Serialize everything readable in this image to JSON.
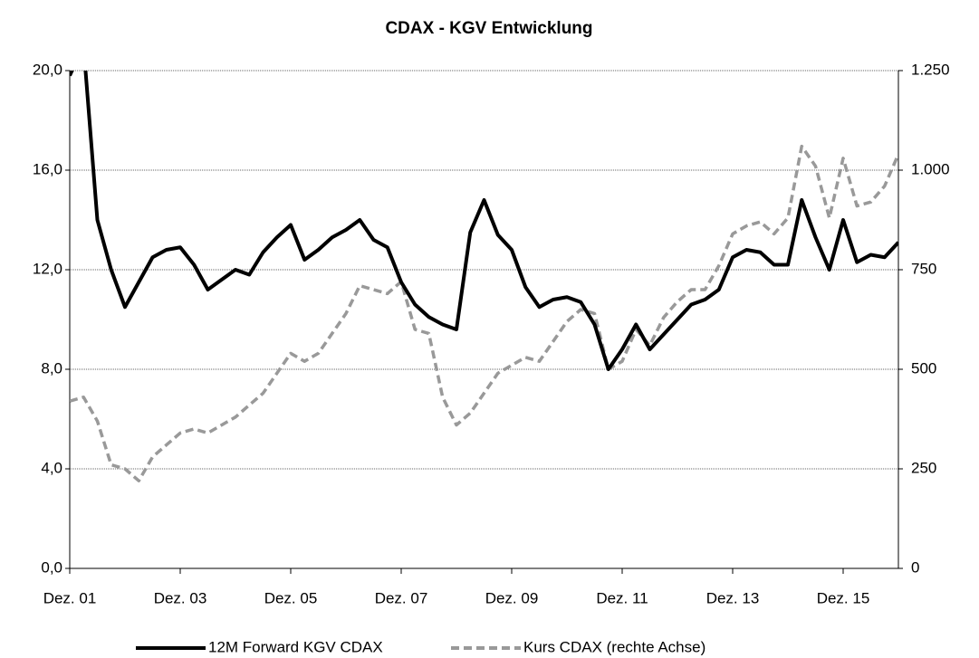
{
  "chart_data": {
    "type": "line",
    "title": "CDAX - KGV Entwicklung",
    "categories": [
      "Dez. 01",
      null,
      null,
      null,
      null,
      null,
      null,
      null,
      "Dez. 03",
      null,
      null,
      null,
      null,
      null,
      null,
      null,
      "Dez. 05",
      null,
      null,
      null,
      null,
      null,
      null,
      null,
      "Dez. 07",
      null,
      null,
      null,
      null,
      null,
      null,
      null,
      "Dez. 09",
      null,
      null,
      null,
      null,
      null,
      null,
      null,
      "Dez. 11",
      null,
      null,
      null,
      null,
      null,
      null,
      null,
      "Dez. 13",
      null,
      null,
      null,
      null,
      null,
      null,
      null,
      "Dez. 15",
      null,
      null,
      null,
      null
    ],
    "series": [
      {
        "name": "12M Forward KGV CDAX",
        "color": "#000000",
        "style": "solid",
        "values": [
          19.8,
          21,
          14,
          12,
          10.5,
          11.5,
          12.5,
          12.8,
          12.9,
          12.2,
          11.2,
          11.6,
          12.0,
          11.8,
          12.7,
          13.3,
          13.8,
          12.4,
          12.8,
          13.3,
          13.6,
          14.0,
          13.2,
          12.9,
          11.5,
          10.6,
          10.1,
          9.8,
          9.6,
          13.5,
          14.8,
          13.4,
          12.8,
          11.3,
          10.5,
          10.8,
          10.9,
          10.7,
          9.8,
          8.0,
          8.8,
          9.8,
          8.8,
          9.4,
          10.0,
          10.6,
          10.8,
          11.2,
          12.5,
          12.8,
          12.7,
          12.2,
          12.2,
          14.8,
          13.3,
          12.0,
          14.0,
          12.3,
          12.6,
          12.5,
          13.1
        ]
      },
      {
        "name": "Kurs CDAX  (rechte Achse)",
        "color": "#999999",
        "style": "dashed",
        "axis": "y2",
        "values": [
          420,
          430,
          370,
          260,
          250,
          220,
          280,
          310,
          340,
          350,
          340,
          360,
          380,
          410,
          440,
          490,
          540,
          520,
          540,
          590,
          640,
          710,
          700,
          690,
          720,
          600,
          590,
          430,
          360,
          390,
          440,
          490,
          510,
          530,
          520,
          570,
          620,
          650,
          640,
          500,
          520,
          600,
          560,
          630,
          670,
          700,
          700,
          760,
          840,
          860,
          870,
          840,
          880,
          1060,
          1010,
          880,
          1030,
          910,
          920,
          960,
          1040
        ]
      }
    ],
    "ylim": [
      0,
      20
    ],
    "yticks": [
      {
        "value": 0,
        "label": "0,0"
      },
      {
        "value": 4,
        "label": "4,0"
      },
      {
        "value": 8,
        "label": "8,0"
      },
      {
        "value": 12,
        "label": "12,0"
      },
      {
        "value": 16,
        "label": "16,0"
      },
      {
        "value": 20,
        "label": "20,0"
      }
    ],
    "y2lim": [
      0,
      1250
    ],
    "y2ticks": [
      0,
      250,
      500,
      750,
      {
        "value": 1000,
        "label": "1.000"
      },
      {
        "value": 1250,
        "label": "1.250"
      }
    ],
    "grid": true,
    "legend": "bottom"
  }
}
